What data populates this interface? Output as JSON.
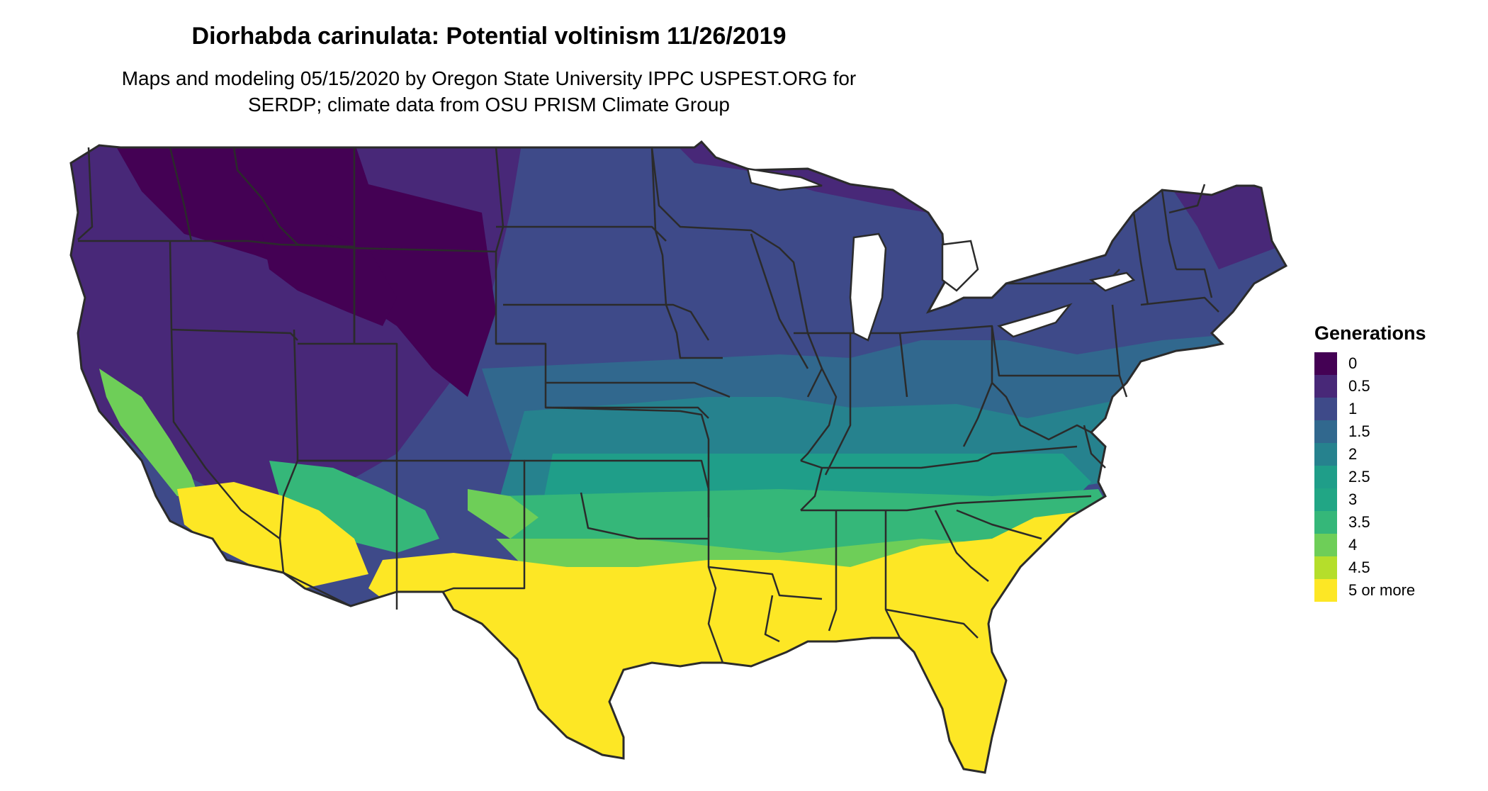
{
  "map": {
    "title": "Diorhabda carinulata: Potential voltinism 11/26/2019",
    "subtitle_lines": [
      "Maps and modeling 05/15/2020 by Oregon State University IPPC USPEST.ORG for",
      "SERDP; climate data from OSU PRISM Climate Group"
    ]
  },
  "legend": {
    "title": "Generations",
    "items": [
      {
        "label": "0",
        "color": "#440154"
      },
      {
        "label": "0.5",
        "color": "#482878"
      },
      {
        "label": "1",
        "color": "#3e4a89"
      },
      {
        "label": "1.5",
        "color": "#31688e"
      },
      {
        "label": "2",
        "color": "#26828e"
      },
      {
        "label": "2.5",
        "color": "#1f9e89"
      },
      {
        "label": "3",
        "color": "#21a685"
      },
      {
        "label": "3.5",
        "color": "#35b779"
      },
      {
        "label": "4",
        "color": "#6ece58"
      },
      {
        "label": "4.5",
        "color": "#b5de2b"
      },
      {
        "label": "5 or more",
        "color": "#fde725"
      }
    ]
  }
}
